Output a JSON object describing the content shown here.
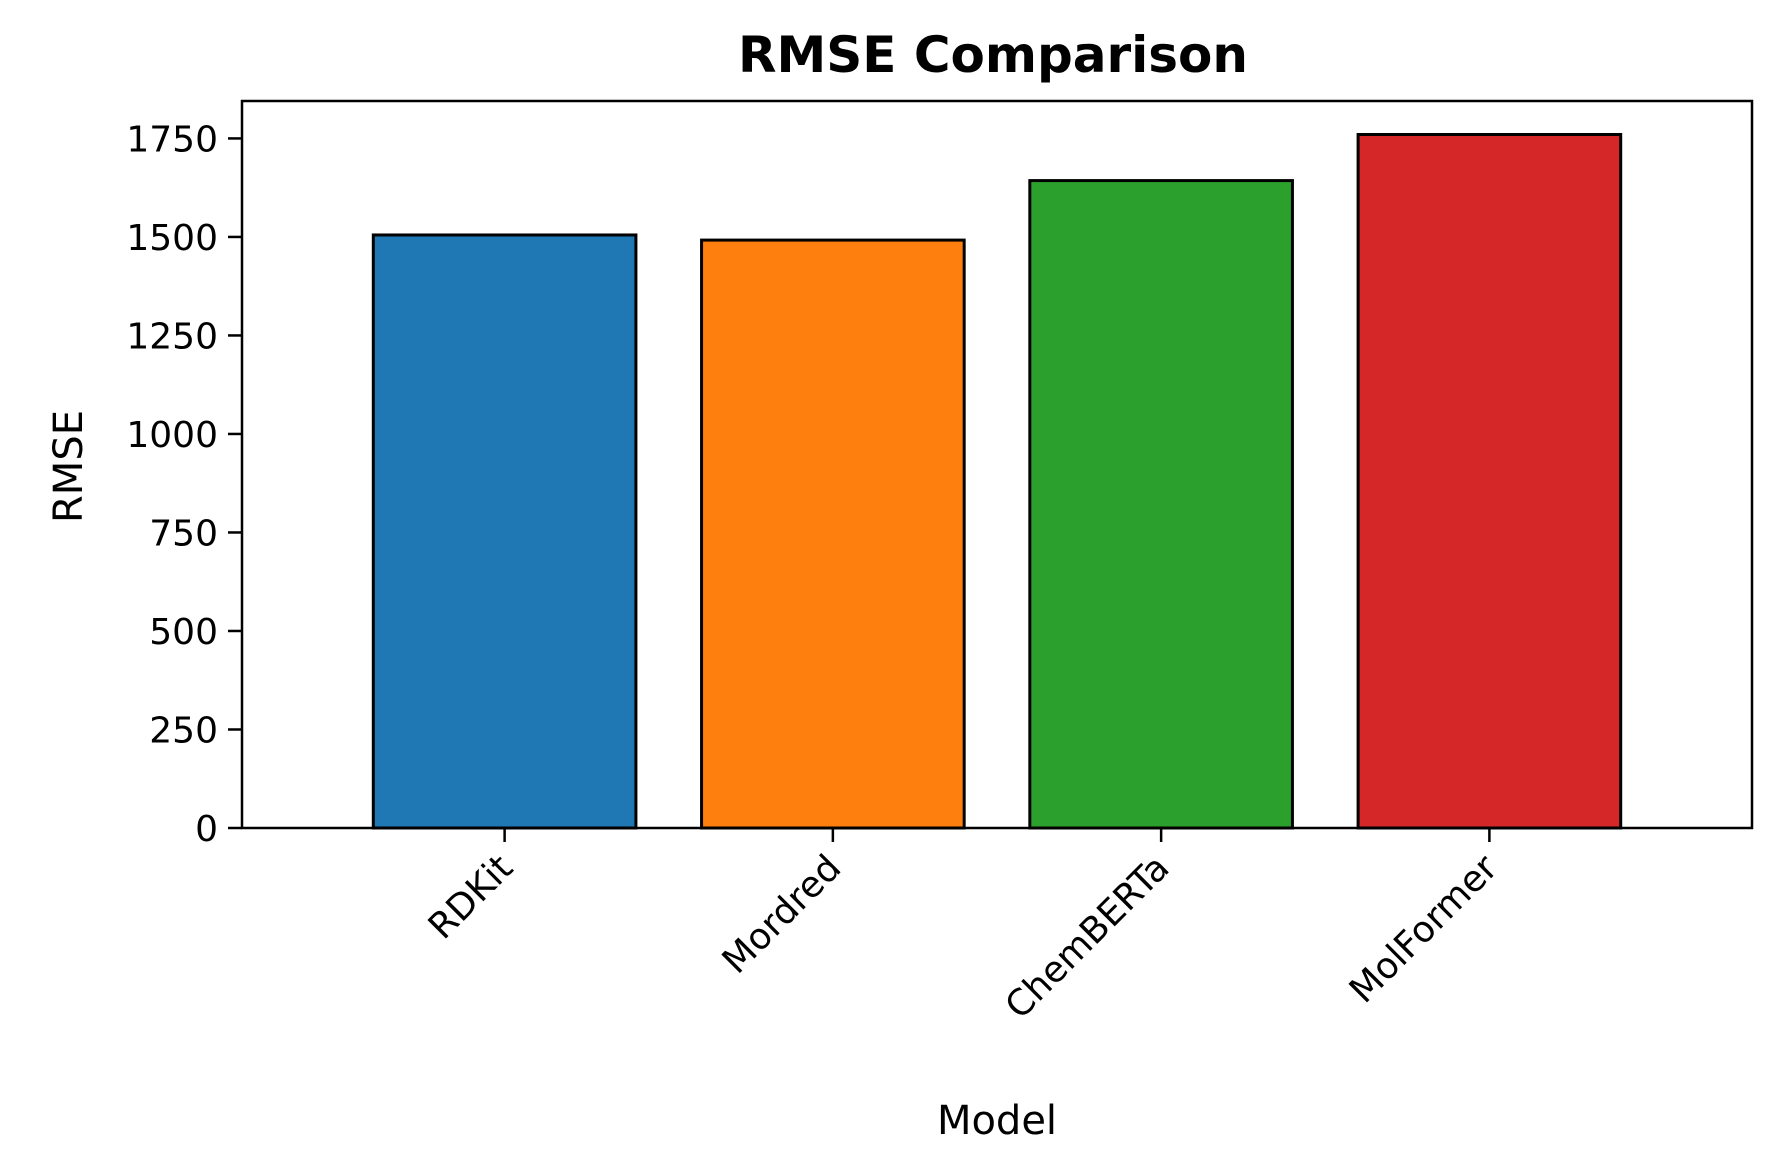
{
  "chart_data": {
    "type": "bar",
    "title": "RMSE Comparison",
    "xlabel": "Model",
    "ylabel": "RMSE",
    "categories": [
      "RDKit",
      "Mordred",
      "ChemBERTa",
      "MolFormer"
    ],
    "values": [
      1505,
      1492,
      1643,
      1760
    ],
    "colors": [
      "#1f77b4",
      "#ff7f0e",
      "#2ca02c",
      "#d62728"
    ],
    "ylim": [
      0,
      1845
    ],
    "yticks": [
      0,
      250,
      500,
      750,
      1000,
      1250,
      1500,
      1750
    ],
    "grid": false,
    "legend": "none"
  }
}
